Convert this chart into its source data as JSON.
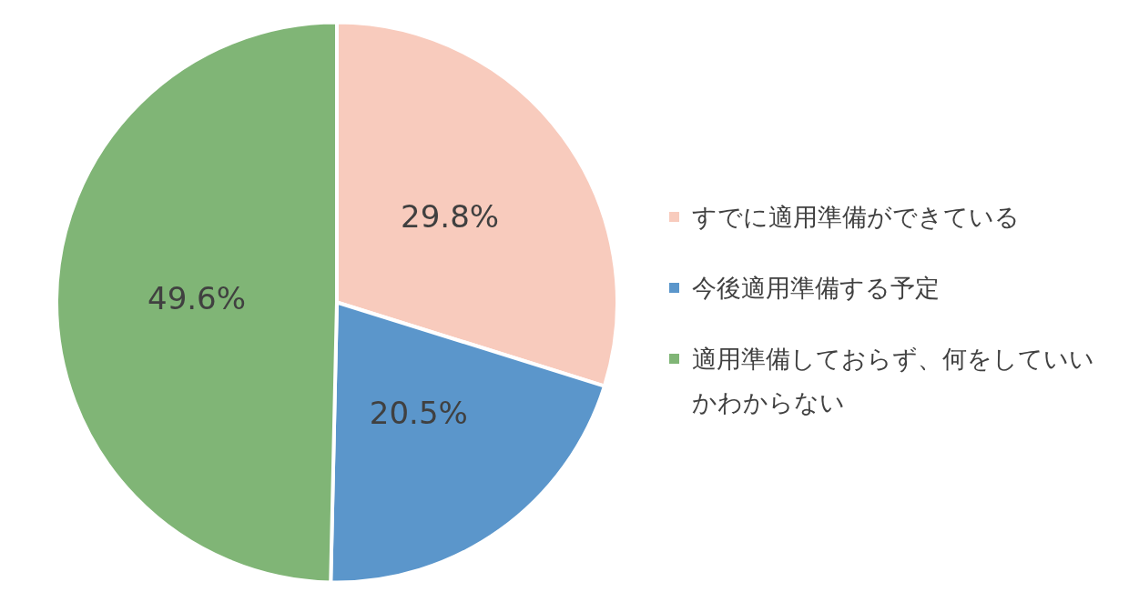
{
  "chart_data": {
    "type": "pie",
    "categories": [
      "すでに適用準備ができている",
      "今後適用準備する予定",
      "適用準備しておらず、何をしていいかわからない"
    ],
    "values": [
      29.8,
      20.5,
      49.6
    ],
    "colors": [
      "#f8cbbd",
      "#5b96cb",
      "#80b576"
    ],
    "value_labels": [
      "29.8%",
      "20.5%",
      "49.6%"
    ],
    "legend": "right"
  }
}
